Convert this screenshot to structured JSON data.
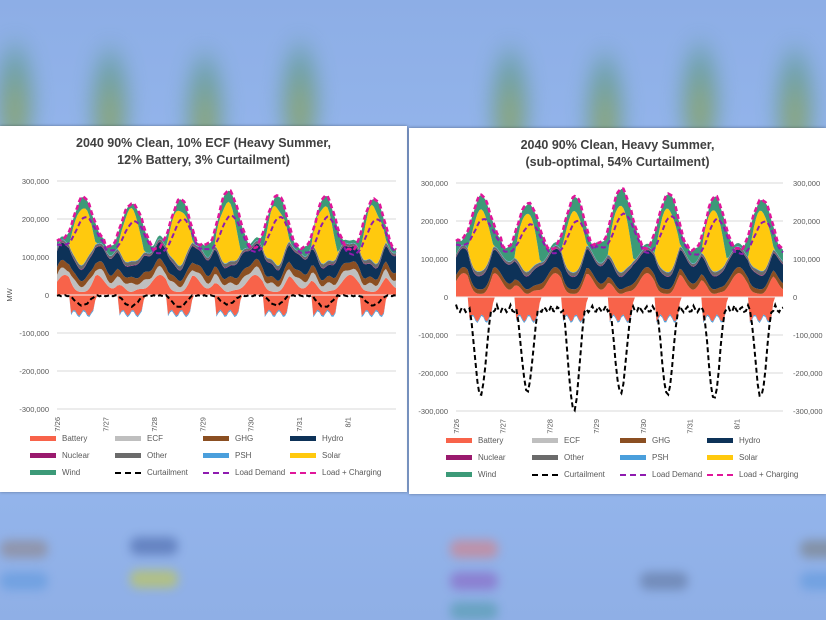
{
  "background": {
    "description": "blurred duplicate charts behind panels"
  },
  "series_colors": {
    "Battery": "#f8634a",
    "ECF": "#bfbfbf",
    "GHG": "#8b4f22",
    "Hydro": "#0d3258",
    "Nuclear": "#9a1a6e",
    "Other": "#6b6b6b",
    "PSH": "#4a9fdc",
    "Solar": "#ffc90e",
    "Wind": "#3c9a78",
    "Curtailment": "#000000",
    "Load Demand": "#8f1bb0",
    "Load + Charging": "#e0169a"
  },
  "chart_data": [
    {
      "type": "area",
      "title": "2040 90% Clean, 10% ECF (Heavy Summer, 12% Battery, 3% Curtailment)",
      "title_lines": [
        "2040 90% Clean, 10% ECF (Heavy Summer,",
        "12% Battery, 3% Curtailment)"
      ],
      "ylabel": "MW",
      "ylim": [
        -300000,
        300000
      ],
      "yticks": [
        300000,
        200000,
        100000,
        0,
        -100000,
        -200000,
        -300000
      ],
      "ytick_labels": [
        "300,000",
        "200,000",
        "100,000",
        "0",
        "-100,000",
        "-200,000",
        "-300,000"
      ],
      "right_axis": false,
      "xtick_labels": [
        "7/26",
        "7/27",
        "7/28",
        "7/29",
        "7/30",
        "7/31",
        "8/1"
      ],
      "grid": true,
      "legend_position": "bottom",
      "days": 7,
      "peak_total": [
        255000,
        242000,
        250000,
        275000,
        262000,
        258000,
        255000
      ],
      "trough_total": [
        140000,
        128000,
        120000,
        130000,
        125000,
        120000,
        118000
      ],
      "load_demand_peak": [
        205000,
        195000,
        200000,
        210000,
        205000,
        205000,
        200000
      ],
      "battery_discharge_peak": 60000,
      "battery_charge_min": -55000,
      "curtailment_min": [
        -25000,
        -28000,
        -30000,
        -22000,
        -25000,
        -30000,
        -25000
      ],
      "legend": [
        "Battery",
        "ECF",
        "GHG",
        "Hydro",
        "Nuclear",
        "Other",
        "PSH",
        "Solar",
        "Wind",
        "Curtailment",
        "Load Demand",
        "Load + Charging"
      ]
    },
    {
      "type": "area",
      "title": "2040 90% Clean, Heavy Summer, (sub-optimal, 54% Curtailment)",
      "title_lines": [
        "2040 90% Clean, Heavy Summer,",
        "(sub-optimal, 54% Curtailment)"
      ],
      "ylabel": "",
      "ylim": [
        -300000,
        300000
      ],
      "yticks": [
        300000,
        200000,
        100000,
        0,
        -100000,
        -200000,
        -300000
      ],
      "ytick_labels": [
        "300,000",
        "200,000",
        "100,000",
        "0",
        "-100,000",
        "-200,000",
        "-300,000"
      ],
      "right_axis": true,
      "xtick_labels": [
        "7/26",
        "7/27",
        "7/28",
        "7/29",
        "7/30",
        "7/31",
        "8/1"
      ],
      "grid": true,
      "legend_position": "bottom",
      "days": 7,
      "peak_total": [
        265000,
        248000,
        262000,
        285000,
        272000,
        262000,
        258000
      ],
      "trough_total": [
        145000,
        130000,
        125000,
        140000,
        128000,
        120000,
        125000
      ],
      "load_demand_peak": [
        205000,
        192000,
        200000,
        220000,
        212000,
        205000,
        200000
      ],
      "battery_discharge_peak": 60000,
      "battery_charge_min": -65000,
      "curtailment_min": [
        -235000,
        -225000,
        -275000,
        -230000,
        -235000,
        -245000,
        -240000
      ],
      "legend": [
        "Battery",
        "ECF",
        "GHG",
        "Hydro",
        "Nuclear",
        "Other",
        "PSH",
        "Solar",
        "Wind",
        "Curtailment",
        "Load Demand",
        "Load + Charging"
      ]
    }
  ]
}
